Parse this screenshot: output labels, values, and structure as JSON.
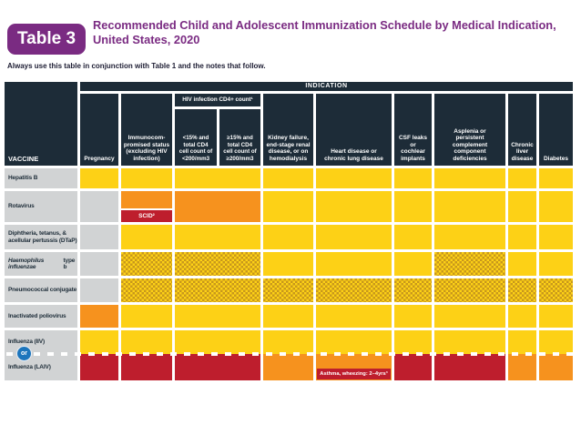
{
  "header": {
    "badge": "Table 3",
    "title_line1": "Recommended Child and Adolescent Immunization Schedule by Medical Indication,",
    "title_line2": "United States, 2020",
    "note": "Always use this table in conjunction with Table 1 and the notes that follow."
  },
  "table": {
    "vaccine_label": "VACCINE",
    "indication_label": "INDICATION",
    "columns": {
      "pregnancy": "Pregnancy",
      "immunocompromised": "Immunocom-\npromised status\n(excluding HIV\ninfection)",
      "hiv_group": "HIV infection CD4+ count¹",
      "hiv_lt15": "<15% and\ntotal CD4\ncell count of\n<200/mm3",
      "hiv_ge15": "≥15% and\ntotal CD4\ncell count of\n≥200/mm3",
      "kidney": "Kidney failure,\nend-stage renal\ndisease, or on\nhemodialysis",
      "heart": "Heart disease or\nchronic lung disease",
      "csf": "CSF leaks\nor\ncochlear\nimplants",
      "asplenia": "Asplenia or\npersistent\ncomplement\ncomponent\ndeficiencies",
      "liver": "Chronic\nliver\ndisease",
      "diabetes": "Diabetes"
    }
  },
  "special": {
    "scid_label": "SCID²",
    "asthma_label": "Asthma, wheezing: 2–4yrs³",
    "or_label": "or"
  },
  "colors": {
    "recommended_yellow": "#fdd116",
    "precaution_orange": "#f6921e",
    "contraindicated_red": "#be1e2d",
    "not_applicable_gray": "#d1d3d4",
    "header_navy": "#1d2c38",
    "title_purple": "#7a2b82",
    "or_badge_blue": "#1c75bc",
    "check_pattern_dark": "#c8981c"
  },
  "rows": [
    {
      "id": "hepatitis-b",
      "label": "Hepatitis B",
      "cells": {
        "pregnancy": "y",
        "immunocompromised": "y",
        "hiv": "y",
        "kidney": "y",
        "heart": "y",
        "csf": "y",
        "asplenia": "y",
        "liver": "y",
        "diabetes": "y"
      }
    },
    {
      "id": "rotavirus",
      "label": "Rotavirus",
      "cells": {
        "pregnancy": "na",
        "immunocompromised": "scid",
        "hiv": "o",
        "kidney": "y",
        "heart": "y",
        "csf": "y",
        "asplenia": "y",
        "liver": "y",
        "diabetes": "y"
      }
    },
    {
      "id": "dtap",
      "label": "Diphtheria, tetanus, & acellular pertussis (DTaP)",
      "cells": {
        "pregnancy": "na",
        "immunocompromised": "y",
        "hiv": "y",
        "kidney": "y",
        "heart": "y",
        "csf": "y",
        "asplenia": "y",
        "liver": "y",
        "diabetes": "y"
      }
    },
    {
      "id": "hib",
      "label": "Haemophilus influenzae type b",
      "label_italic_prefix": "Haemophilus influenzae",
      "cells": {
        "pregnancy": "na",
        "immunocompromised": "ch",
        "hiv": "ch",
        "kidney": "y",
        "heart": "y",
        "csf": "y",
        "asplenia": "ch",
        "liver": "y",
        "diabetes": "y"
      }
    },
    {
      "id": "pneumococcal",
      "label": "Pneumococcal conjugate",
      "cells": {
        "pregnancy": "na",
        "immunocompromised": "ch",
        "hiv": "ch",
        "kidney": "ch",
        "heart": "ch",
        "csf": "ch",
        "asplenia": "ch",
        "liver": "ch",
        "diabetes": "ch"
      }
    },
    {
      "id": "ipv",
      "label": "Inactivated poliovirus",
      "cells": {
        "pregnancy": "o",
        "immunocompromised": "y",
        "hiv": "y",
        "kidney": "y",
        "heart": "y",
        "csf": "y",
        "asplenia": "y",
        "liver": "y",
        "diabetes": "y"
      }
    },
    {
      "id": "iiv",
      "label": "Influenza (IIV)",
      "cells": {
        "pregnancy": "y",
        "immunocompromised": "y",
        "hiv": "y",
        "kidney": "y",
        "heart": "y",
        "csf": "y",
        "asplenia": "y",
        "liver": "y",
        "diabetes": "y"
      }
    },
    {
      "id": "laiv",
      "label": "Influenza (LAIV)",
      "or_divider_above": true,
      "cells": {
        "pregnancy": "r",
        "immunocompromised": "r",
        "hiv": "r",
        "kidney": "o",
        "heart": "asthma",
        "csf": "r",
        "asplenia": "r",
        "liver": "o",
        "diabetes": "o"
      }
    }
  ]
}
